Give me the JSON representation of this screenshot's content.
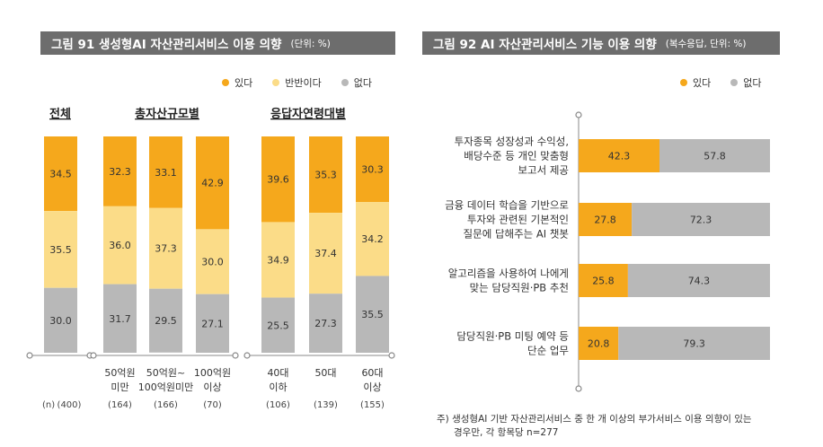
{
  "fig91": {
    "title": "그림 91   생성형AI 자산관리서비스 이용 의향",
    "unit": "(단위: %)",
    "legend": [
      {
        "label": "있다",
        "color": "#F5A81C"
      },
      {
        "label": "반반이다",
        "color": "#FBDC88"
      },
      {
        "label": "없다",
        "color": "#B8B8B8"
      }
    ],
    "group_titles": {
      "overall": "전체",
      "assets": "총자산규모별",
      "age": "응답자연령대별"
    },
    "n_label": "(n)",
    "chart_data": {
      "type": "bar",
      "stacked": true,
      "categories": [
        "전체",
        "50억원 미만",
        "50억원~ 100억원미만",
        "100억원 이상",
        "40대 이하",
        "50대",
        "60대 이상"
      ],
      "category_lines": [
        [
          "전체"
        ],
        [
          "50억원",
          "미만"
        ],
        [
          "50억원~",
          "100억원미만"
        ],
        [
          "100억원",
          "이상"
        ],
        [
          "40대",
          "이하"
        ],
        [
          "50대"
        ],
        [
          "60대",
          "이상"
        ]
      ],
      "n": [
        "(400)",
        "(164)",
        "(166)",
        "(70)",
        "(106)",
        "(139)",
        "(155)"
      ],
      "series": [
        {
          "name": "있다",
          "color": "#F5A81C",
          "values": [
            34.5,
            32.3,
            33.1,
            42.9,
            39.6,
            35.3,
            30.3
          ]
        },
        {
          "name": "반반이다",
          "color": "#FBDC88",
          "values": [
            35.5,
            36.0,
            37.3,
            30.0,
            34.9,
            37.4,
            34.2
          ]
        },
        {
          "name": "없다",
          "color": "#B8B8B8",
          "values": [
            30.0,
            31.7,
            29.5,
            27.1,
            25.5,
            27.3,
            35.5
          ]
        }
      ],
      "ylim": [
        0,
        100
      ]
    }
  },
  "fig92": {
    "title": "그림 92   AI 자산관리서비스 기능 이용 의향",
    "unit": "(복수응답, 단위: %)",
    "legend": [
      {
        "label": "있다",
        "color": "#F5A81C"
      },
      {
        "label": "없다",
        "color": "#B8B8B8"
      }
    ],
    "chart_data": {
      "type": "bar",
      "orientation": "horizontal",
      "stacked": true,
      "categories": [
        "투자종목 성장성과 수익성, 배당수준 등 개인 맞춤형 보고서 제공",
        "금융 데이터 학습을 기반으로 투자와 관련된 기본적인 질문에 답해주는 AI 챗봇",
        "알고리즘을 사용하여 나에게 맞는 담당직원·PB 추천",
        "담당직원·PB 미팅 예약 등 단순 업무"
      ],
      "category_lines": [
        [
          "투자종목 성장성과 수익성,",
          "배당수준 등 개인 맞춤형",
          "보고서 제공"
        ],
        [
          "금융 데이터 학습을 기반으로",
          "투자와 관련된 기본적인",
          "질문에 답해주는 AI 챗봇"
        ],
        [
          "알고리즘을 사용하여 나에게",
          "맞는 담당직원·PB 추천"
        ],
        [
          "담당직원·PB 미팅 예약 등",
          "단순 업무"
        ]
      ],
      "series": [
        {
          "name": "있다",
          "color": "#F5A81C",
          "values": [
            42.3,
            27.8,
            25.8,
            20.8
          ]
        },
        {
          "name": "없다",
          "color": "#B8B8B8",
          "values": [
            57.8,
            72.3,
            74.3,
            79.3
          ]
        }
      ],
      "xlim": [
        0,
        100
      ]
    },
    "footnote": [
      "주) 생성형AI 기반 자산관리서비스 중 한 개 이상의 부가서비스 이용 의향이 있는",
      "경우만, 각 항목당 n=277"
    ]
  }
}
